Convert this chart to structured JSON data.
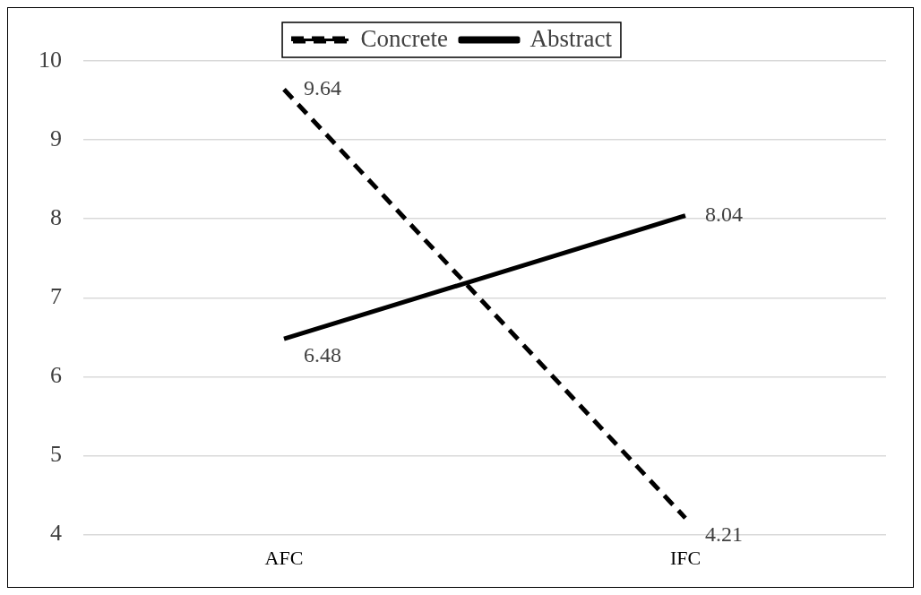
{
  "chart_data": {
    "type": "line",
    "categories": [
      "AFC",
      "IFC"
    ],
    "series": [
      {
        "name": "Concrete",
        "color": "#000000",
        "values": [
          9.64,
          4.21
        ],
        "line_style": "dashed"
      },
      {
        "name": "Abstract",
        "color": "#000000",
        "values": [
          6.48,
          8.04
        ],
        "line_style": "solid"
      }
    ],
    "ylim": [
      4,
      10
    ],
    "yticks": [
      4,
      5,
      6,
      7,
      8,
      9,
      10
    ],
    "grid": "y",
    "legend": "top",
    "marker": "none",
    "data_labels": true
  }
}
